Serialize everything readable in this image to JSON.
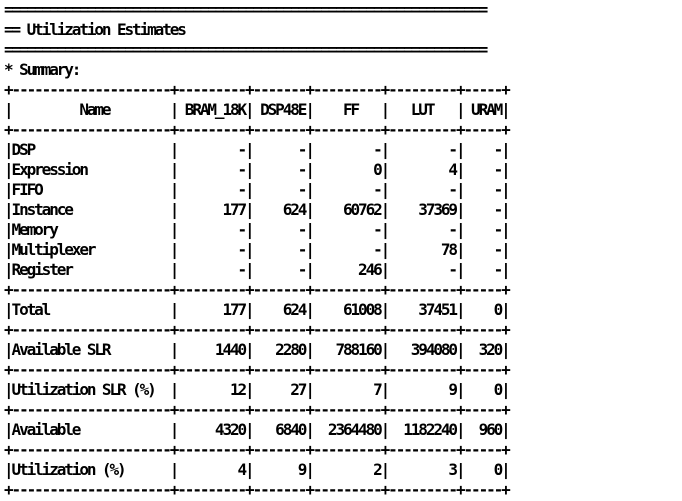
{
  "report": {
    "rule_top": "================================================================",
    "heading": "== Utilization Estimates",
    "rule_bottom": "================================================================",
    "summary_label": "* Summary:",
    "table": {
      "header_separator": "+---------------------+---------+-------+---------+---------+-----+",
      "header_row": "|         Name        | BRAM_18K| DSP48E|    FF   |   LUT   | URAM|",
      "rows": [
        "|DSP                  |        -|      -|        -|        -|    -|",
        "|Expression           |        -|      -|        0|        4|    -|",
        "|FIFO                 |        -|      -|        -|        -|    -|",
        "|Instance             |      177|    624|    60762|    37369|    -|",
        "|Memory               |        -|      -|        -|        -|    -|",
        "|Multiplexer          |        -|      -|        -|       78|    -|",
        "|Register             |        -|      -|      246|        -|    -|"
      ],
      "total_row": "|Total                |      177|    624|    61008|    37451|    0|",
      "available_slr_row": "|Available SLR        |     1440|   2280|   788160|   394080|  320|",
      "utilization_slr_row": "|Utilization SLR (%)  |       12|     27|        7|        9|    0|",
      "available_row": "|Available            |     4320|   6840|  2364480|  1182240|  960|",
      "utilization_row": "|Utilization (%)      |        4|      9|        2|        3|    0|"
    }
  }
}
